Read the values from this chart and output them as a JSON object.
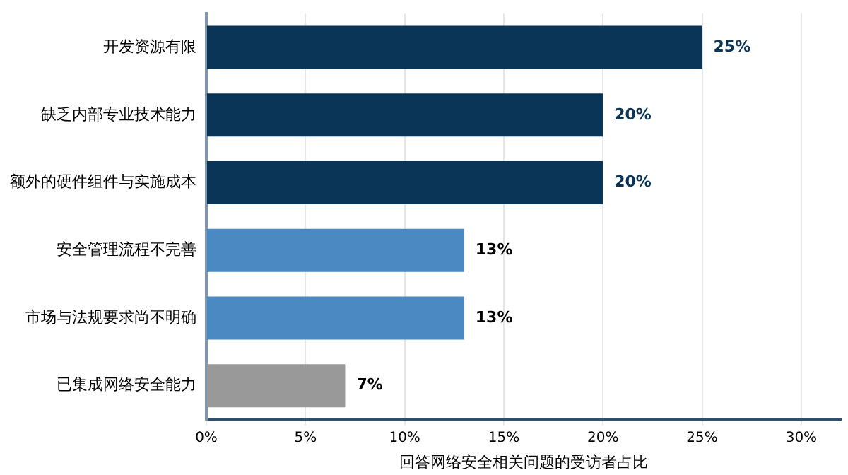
{
  "chart_data": {
    "type": "bar",
    "orientation": "horizontal",
    "xlabel": "回答网络安全相关问题的受访者占比",
    "categories": [
      "开发资源有限",
      "缺乏内部专业技术能力",
      "额外的硬件组件与实施成本",
      "安全管理流程不完善",
      "市场与法规要求尚不明确",
      "已集成网络安全能力"
    ],
    "values": [
      25,
      20,
      20,
      13,
      13,
      7
    ],
    "colors": [
      "#0b3556",
      "#0b3556",
      "#0b3556",
      "#4a89c2",
      "#4a89c2",
      "#999999"
    ],
    "value_labels": [
      "25%",
      "20%",
      "20%",
      "13%",
      "13%",
      "7%"
    ],
    "xlim": [
      0,
      32
    ],
    "xticks": [
      {
        "value": 0,
        "label": "0%"
      },
      {
        "value": 5,
        "label": "5%"
      },
      {
        "value": 10,
        "label": "10%"
      },
      {
        "value": 15,
        "label": "15%"
      },
      {
        "value": 20,
        "label": "20%"
      },
      {
        "value": 25,
        "label": "25%"
      },
      {
        "value": 30,
        "label": "30%"
      }
    ],
    "grid": "x"
  }
}
